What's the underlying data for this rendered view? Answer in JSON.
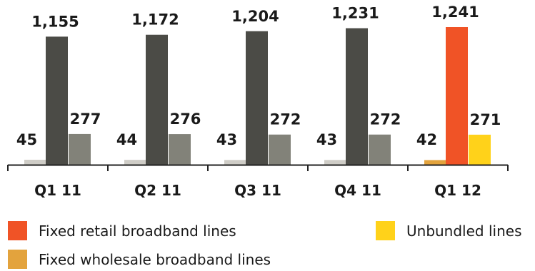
{
  "colors": {
    "wholesale_prior": "#cfcdc7",
    "retail_prior": "#4b4b46",
    "unbundled_prior": "#828279",
    "wholesale_current": "#e3a33d",
    "retail_current": "#f05326",
    "unbundled_current": "#ffd21a",
    "axis": "#222222"
  },
  "chart_data": {
    "type": "bar",
    "categories": [
      "Q1 11",
      "Q2 11",
      "Q3 11",
      "Q4 11",
      "Q1 12"
    ],
    "series": [
      {
        "name": "Fixed wholesale broadband lines",
        "values": [
          45,
          44,
          43,
          43,
          42
        ],
        "labels": [
          "45",
          "44",
          "43",
          "43",
          "42"
        ]
      },
      {
        "name": "Fixed retail broadband lines",
        "values": [
          1155,
          1172,
          1204,
          1231,
          1241
        ],
        "labels": [
          "1,155",
          "1,172",
          "1,204",
          "1,231",
          "1,241"
        ]
      },
      {
        "name": "Unbundled lines",
        "values": [
          277,
          276,
          272,
          272,
          271
        ],
        "labels": [
          "277",
          "276",
          "272",
          "272",
          "271"
        ]
      }
    ],
    "ylim": [
      0,
      1250
    ],
    "grid": false,
    "legend": {
      "placement": "bottom",
      "items": [
        {
          "label": "Fixed retail broadband lines",
          "color": "#f05326"
        },
        {
          "label": "Unbundled lines",
          "color": "#ffd21a"
        },
        {
          "label": "Fixed wholesale broadband lines",
          "color": "#e3a33d"
        }
      ]
    }
  }
}
